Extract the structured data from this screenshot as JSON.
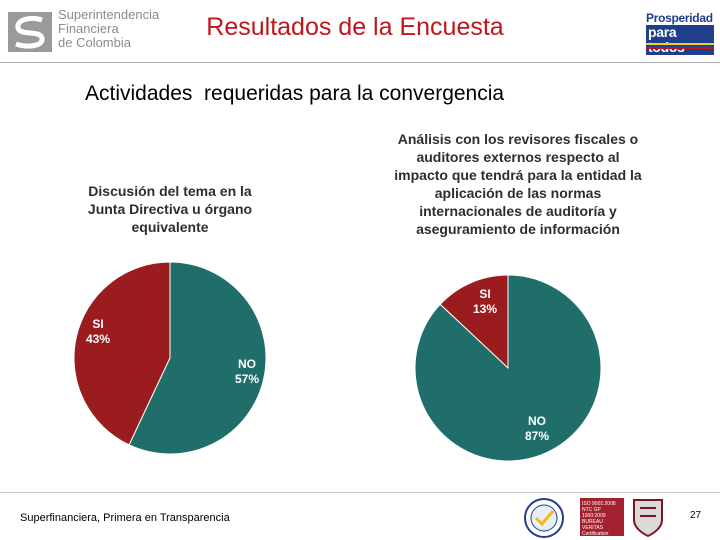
{
  "header": {
    "logo_left_lines": [
      "Superintendencia",
      "Financiera",
      "de Colombia"
    ],
    "title": "Resultados de la Encuesta",
    "logo_right_line1": "Prosperidad",
    "logo_right_line2": "para todos"
  },
  "subtitle": "Actividades  requeridas para la convergencia",
  "chart_data": [
    {
      "type": "pie",
      "title": "Discusión del tema en la\nJunta Directiva u órgano\nequivalente",
      "slices": [
        {
          "label": "SI",
          "value": 43,
          "value_label": "43%",
          "color": "#9b1c1f"
        },
        {
          "label": "NO",
          "value": 57,
          "value_label": "57%",
          "color": "#1f6e6a"
        }
      ]
    },
    {
      "type": "pie",
      "title": "Análisis con los revisores fiscales o\nauditores externos respecto al\nimpacto que tendrá para la entidad la\naplicación de las normas\ninternacionales de auditoría y\naseguramiento de información",
      "slices": [
        {
          "label": "SI",
          "value": 13,
          "value_label": "13%",
          "color": "#9b1c1f"
        },
        {
          "label": "NO",
          "value": 87,
          "value_label": "87%",
          "color": "#1f6e6a"
        }
      ]
    }
  ],
  "footer": {
    "text": "Superfinanciera, Primera en Transparencia",
    "cert_text": "ISO 9001:2008\nNTC GP 1000:2009\nBUREAU VERITAS\nCertification",
    "page_number": "27"
  },
  "colors": {
    "title_red": "#c0151b",
    "si": "#9b1c1f",
    "no": "#1f6e6a",
    "brand_blue": "#1f3f8c"
  }
}
